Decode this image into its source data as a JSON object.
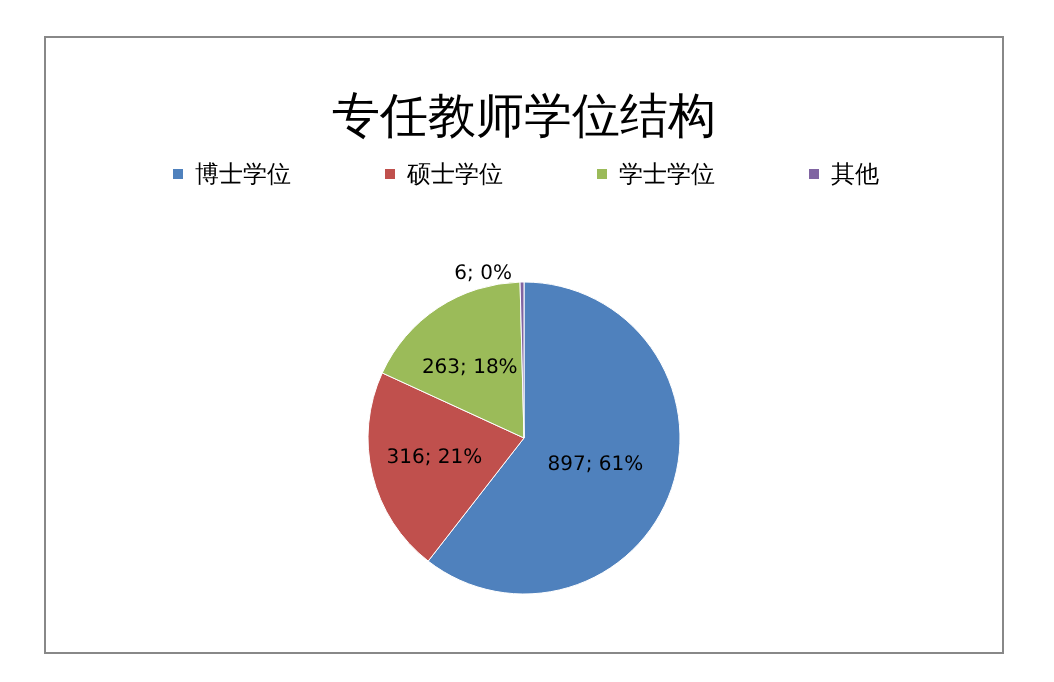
{
  "chart_data": {
    "type": "pie",
    "title": "专任教师学位结构",
    "categories": [
      "博士学位",
      "硕士学位",
      "学士学位",
      "其他"
    ],
    "values": [
      897,
      316,
      263,
      6
    ],
    "colors": [
      "#4f81bd",
      "#c0504d",
      "#9bbb59",
      "#8064a2"
    ],
    "value_labels": [
      "897; 61%",
      "316; 21%",
      "263; 18%",
      "6; 0%"
    ],
    "legend": "top"
  }
}
